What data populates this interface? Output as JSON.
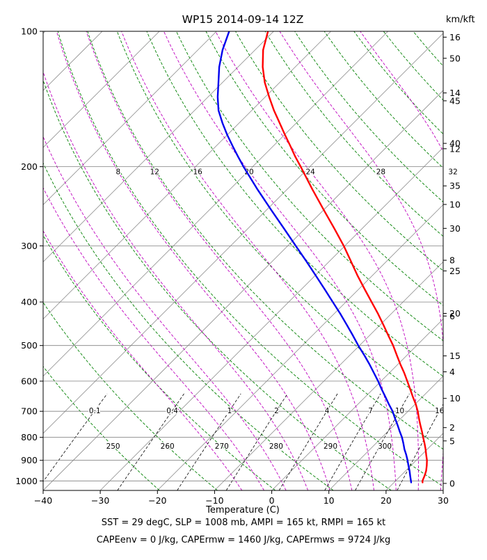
{
  "title": "WP15 2014-09-14 12Z",
  "right_axis_header": "km/kft",
  "xlabel": "Temperature (C)",
  "footer": {
    "line1": "SST = 29 degC, SLP = 1008 mb, AMPI = 165 kt, RMPI = 165 kt",
    "line2": "CAPEenv = 0 J/kg, CAPErmw = 1460 J/kg, CAPErmws = 9724 J/kg"
  },
  "chart_data": {
    "type": "line",
    "variant": "skew-t-log-p-sounding",
    "pressure_axis": {
      "ticks": [
        100,
        200,
        300,
        400,
        500,
        600,
        700,
        800,
        900,
        1000
      ],
      "range": [
        100,
        1050
      ],
      "scale": "log"
    },
    "temp_axis": {
      "tick_values": [
        -40,
        -30,
        -20,
        -10,
        0,
        10,
        20,
        30
      ],
      "tick_labels": [
        "−40",
        "−30",
        "−20",
        "−10",
        "0",
        "10",
        "20",
        "30"
      ],
      "range": [
        -40,
        30
      ],
      "skew_deg": 45
    },
    "height_axis": {
      "unit": "km/kft",
      "km_ticks": [
        0,
        2,
        4,
        6,
        8,
        10,
        12,
        14,
        16
      ],
      "kft_ticks": [
        5,
        10,
        15,
        20,
        25,
        30,
        35,
        40,
        45,
        50
      ],
      "scale_height_km": 7.0,
      "p0": 1013
    },
    "isotherms": {
      "start": -120,
      "end": 30,
      "step": 10,
      "color": "#8c8c8c"
    },
    "isobar_color": "#808080",
    "dry_adiabats": {
      "theta_start": 250,
      "theta_end": 440,
      "step": 10,
      "labels": [
        250,
        260,
        270,
        280,
        290,
        300
      ],
      "color": "#008000"
    },
    "moist_adiabats": {
      "values": [
        -8,
        -4,
        0,
        4,
        8,
        12,
        16,
        20,
        24,
        28,
        32,
        36,
        40,
        44
      ],
      "labels": [
        8,
        12,
        16,
        20,
        24,
        28,
        32
      ],
      "color": "#bf00bf"
    },
    "mixing_ratio": {
      "values": [
        0.1,
        0.4,
        1,
        2,
        4,
        7,
        10,
        16
      ],
      "color": "#000000",
      "p_range": [
        640,
        1050
      ]
    },
    "indices": {
      "SST_degC": 29,
      "SLP_mb": 1008,
      "AMPI_kt": 165,
      "RMPI_kt": 165,
      "CAPEenv_Jkg": 0,
      "CAPErmw_Jkg": 1460,
      "CAPErmws_Jkg": 9724
    },
    "series": [
      {
        "name": "temperature",
        "color": "#ff0000",
        "points": [
          [
            1008,
            25.0
          ],
          [
            1000,
            24.7
          ],
          [
            975,
            24.2
          ],
          [
            950,
            23.6
          ],
          [
            925,
            22.8
          ],
          [
            900,
            21.9
          ],
          [
            875,
            20.8
          ],
          [
            850,
            19.7
          ],
          [
            825,
            18.5
          ],
          [
            800,
            17.2
          ],
          [
            775,
            15.9
          ],
          [
            750,
            14.5
          ],
          [
            725,
            13.1
          ],
          [
            700,
            11.7
          ],
          [
            675,
            10.1
          ],
          [
            650,
            8.3
          ],
          [
            625,
            6.5
          ],
          [
            600,
            4.6
          ],
          [
            575,
            2.6
          ],
          [
            550,
            0.4
          ],
          [
            525,
            -1.8
          ],
          [
            500,
            -4.1
          ],
          [
            475,
            -6.7
          ],
          [
            450,
            -9.4
          ],
          [
            425,
            -12.3
          ],
          [
            400,
            -15.5
          ],
          [
            375,
            -18.9
          ],
          [
            350,
            -22.5
          ],
          [
            325,
            -26.2
          ],
          [
            300,
            -30.2
          ],
          [
            275,
            -34.8
          ],
          [
            250,
            -39.9
          ],
          [
            225,
            -45.5
          ],
          [
            200,
            -51.6
          ],
          [
            190,
            -54.3
          ],
          [
            180,
            -57.0
          ],
          [
            170,
            -59.9
          ],
          [
            160,
            -62.9
          ],
          [
            150,
            -66.1
          ],
          [
            140,
            -69.3
          ],
          [
            130,
            -72.6
          ],
          [
            120,
            -75.7
          ],
          [
            110,
            -78.6
          ],
          [
            100,
            -81.0
          ]
        ]
      },
      {
        "name": "dewpoint",
        "color": "#0000ee",
        "points": [
          [
            1008,
            23.0
          ],
          [
            1000,
            22.7
          ],
          [
            975,
            21.7
          ],
          [
            950,
            20.7
          ],
          [
            925,
            19.6
          ],
          [
            900,
            18.5
          ],
          [
            875,
            17.3
          ],
          [
            850,
            16.0
          ],
          [
            825,
            14.8
          ],
          [
            800,
            13.5
          ],
          [
            775,
            12.0
          ],
          [
            750,
            10.5
          ],
          [
            725,
            8.9
          ],
          [
            700,
            7.3
          ],
          [
            675,
            5.4
          ],
          [
            650,
            3.5
          ],
          [
            625,
            1.5
          ],
          [
            600,
            -0.5
          ],
          [
            575,
            -2.7
          ],
          [
            550,
            -5.0
          ],
          [
            525,
            -7.5
          ],
          [
            500,
            -10.2
          ],
          [
            475,
            -12.9
          ],
          [
            450,
            -15.8
          ],
          [
            425,
            -18.9
          ],
          [
            400,
            -22.3
          ],
          [
            375,
            -25.9
          ],
          [
            350,
            -29.8
          ],
          [
            325,
            -34.0
          ],
          [
            300,
            -38.6
          ],
          [
            275,
            -43.6
          ],
          [
            250,
            -49.1
          ],
          [
            225,
            -55.1
          ],
          [
            200,
            -61.6
          ],
          [
            190,
            -64.3
          ],
          [
            180,
            -67.1
          ],
          [
            170,
            -70.0
          ],
          [
            160,
            -72.9
          ],
          [
            150,
            -75.8
          ],
          [
            140,
            -78.3
          ],
          [
            130,
            -80.7
          ],
          [
            120,
            -83.3
          ],
          [
            110,
            -85.7
          ],
          [
            100,
            -87.8
          ]
        ]
      }
    ]
  }
}
